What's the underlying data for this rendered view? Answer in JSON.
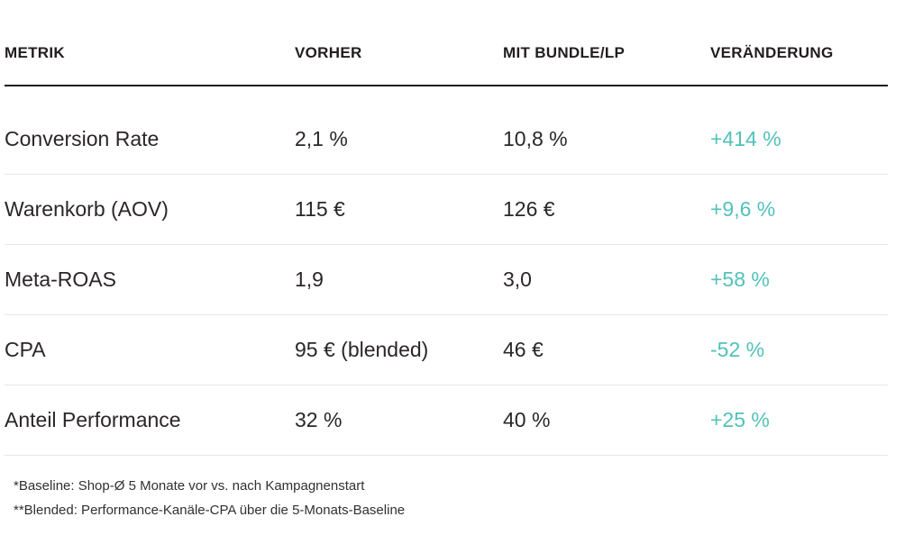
{
  "chart_data": {
    "type": "table",
    "columns": [
      "METRIK",
      "VORHER",
      "MIT BUNDLE/LP",
      "VERÄNDERUNG"
    ],
    "rows": [
      [
        "Conversion Rate",
        "2,1 %",
        "10,8 %",
        "+414 %"
      ],
      [
        "Warenkorb (AOV)",
        "115 €",
        "126 €",
        "+9,6 %"
      ],
      [
        "Meta-ROAS",
        "1,9",
        "3,0",
        "+58 %"
      ],
      [
        "CPA",
        "95 € (blended)",
        "46 €",
        "-52 %"
      ],
      [
        "Anteil Performance",
        "32 %",
        "40 %",
        "+25 %"
      ]
    ],
    "footnotes": [
      "*Baseline: Shop-Ø 5 Monate vor vs. nach Kampagnenstart",
      "**Blended: Performance-Kanäle-CPA über die 5-Monats-Baseline"
    ],
    "layout_hints": {
      "change_column_colored": true,
      "header_divider": "heavy",
      "row_divider": "light"
    }
  },
  "colors": {
    "accent_teal": "#52c1b9",
    "text_dark": "#2b2627",
    "header_text": "#211d1e",
    "header_divider": "#1e1b1c",
    "row_separator": "#e7e7e7",
    "background": "#ffffff"
  }
}
